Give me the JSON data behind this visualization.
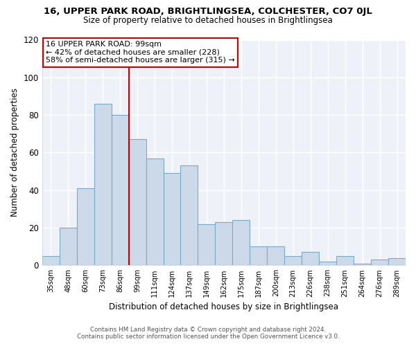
{
  "title": "16, UPPER PARK ROAD, BRIGHTLINGSEA, COLCHESTER, CO7 0JL",
  "subtitle": "Size of property relative to detached houses in Brightlingsea",
  "xlabel": "Distribution of detached houses by size in Brightlingsea",
  "ylabel": "Number of detached properties",
  "bar_color": "#ccd9e8",
  "bar_edge_color": "#7aaac8",
  "categories": [
    "35sqm",
    "48sqm",
    "60sqm",
    "73sqm",
    "86sqm",
    "99sqm",
    "111sqm",
    "124sqm",
    "137sqm",
    "149sqm",
    "162sqm",
    "175sqm",
    "187sqm",
    "200sqm",
    "213sqm",
    "226sqm",
    "238sqm",
    "251sqm",
    "264sqm",
    "276sqm",
    "289sqm"
  ],
  "values": [
    5,
    20,
    41,
    86,
    80,
    67,
    57,
    49,
    53,
    22,
    23,
    24,
    10,
    10,
    5,
    7,
    2,
    5,
    1,
    3,
    4
  ],
  "ylim": [
    0,
    120
  ],
  "yticks": [
    0,
    20,
    40,
    60,
    80,
    100,
    120
  ],
  "marker_index": 4,
  "marker_label": "16 UPPER PARK ROAD: 99sqm",
  "marker_line_color": "#cc0000",
  "annotation_line1": "← 42% of detached houses are smaller (228)",
  "annotation_line2": "58% of semi-detached houses are larger (315) →",
  "box_edge_color": "#cc0000",
  "footer_line1": "Contains HM Land Registry data © Crown copyright and database right 2024.",
  "footer_line2": "Contains public sector information licensed under the Open Government Licence v3.0.",
  "background_color": "#ffffff",
  "plot_bg_color": "#eef2f8",
  "grid_color": "#ffffff"
}
